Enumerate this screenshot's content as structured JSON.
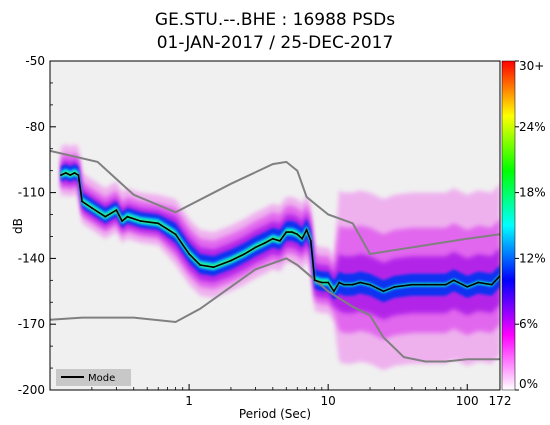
{
  "chart_data": {
    "type": "heatmap",
    "title_line1": "GE.STU.--.BHE : 16988 PSDs",
    "title_line2": "01-JAN-2017 / 25-DEC-2017",
    "xlabel": "Period (Sec)",
    "ylabel": "dB",
    "x_scale": "log",
    "xlim": [
      0.1,
      172
    ],
    "ylim": [
      -200,
      -50
    ],
    "x_ticks": [
      {
        "value": 1,
        "label": "1"
      },
      {
        "value": 10,
        "label": "10"
      },
      {
        "value": 100,
        "label": "100"
      },
      {
        "value": 172,
        "label": "172"
      }
    ],
    "y_ticks": [
      {
        "value": -50,
        "label": "-50"
      },
      {
        "value": -80,
        "label": "-80"
      },
      {
        "value": -110,
        "label": "-110"
      },
      {
        "value": -140,
        "label": "-140"
      },
      {
        "value": -170,
        "label": "-170"
      },
      {
        "value": -200,
        "label": "-200"
      }
    ],
    "colorbar": {
      "range": [
        0,
        30
      ],
      "ticks": [
        {
          "value": 30,
          "label": "30+"
        },
        {
          "value": 24,
          "label": "24%"
        },
        {
          "value": 18,
          "label": "18%"
        },
        {
          "value": 12,
          "label": "12%"
        },
        {
          "value": 6,
          "label": "6%"
        },
        {
          "value": 0,
          "label": "0%"
        }
      ],
      "colors": [
        "#ffffff",
        "#ff00ff",
        "#0000ff",
        "#00ffff",
        "#00ff00",
        "#ffff00",
        "#ff0000"
      ]
    },
    "legend": {
      "placement": "bottom-left",
      "entries": [
        {
          "label": "Mode",
          "color": "#000000"
        }
      ]
    },
    "mode": {
      "x": [
        0.12,
        0.13,
        0.14,
        0.15,
        0.16,
        0.17,
        0.2,
        0.25,
        0.3,
        0.33,
        0.36,
        0.45,
        0.6,
        0.8,
        1.0,
        1.2,
        1.5,
        2.0,
        2.5,
        3.0,
        3.5,
        4.0,
        4.5,
        5.0,
        5.5,
        6.0,
        6.5,
        7.0,
        7.5,
        8.0,
        9.0,
        10.0,
        11.0,
        12.0,
        13.0,
        15.0,
        17.0,
        20.0,
        25.0,
        30.0,
        40.0,
        50.0,
        60.0,
        70.0,
        80.0,
        100.0,
        120.0,
        150.0,
        172.0
      ],
      "y": [
        -102,
        -101,
        -102,
        -101,
        -102,
        -114,
        -117,
        -121,
        -118,
        -123,
        -121,
        -123,
        -124,
        -129,
        -138,
        -143,
        -144,
        -141,
        -138,
        -135,
        -133,
        -131,
        -132,
        -128,
        -128,
        -129,
        -131,
        -127,
        -132,
        -150,
        -151,
        -151,
        -155,
        -151,
        -152,
        -152,
        -151,
        -152,
        -155,
        -153,
        -152,
        -152,
        -152,
        -152,
        -150,
        -153,
        -151,
        -152,
        -148
      ]
    },
    "nlnm": {
      "x": [
        0.1,
        0.17,
        0.4,
        0.8,
        1.2,
        3.0,
        5.0,
        6.0,
        10.0,
        15.0,
        20.0,
        25.0,
        35.0,
        50.0,
        70.0,
        100.0,
        172.0
      ],
      "y": [
        -168,
        -167,
        -167,
        -169,
        -163,
        -145,
        -140,
        -143,
        -155,
        -162,
        -166,
        -176,
        -185,
        -187,
        -187,
        -186,
        -186
      ]
    },
    "nhnm": {
      "x": [
        0.1,
        0.22,
        0.4,
        0.8,
        2.0,
        4.0,
        5.0,
        6.0,
        7.0,
        10.0,
        15.0,
        20.0,
        50.0,
        100.0,
        172.0
      ],
      "y": [
        -91,
        -96,
        -111,
        -119,
        -106,
        -97,
        -96,
        -100,
        -112,
        -120,
        -124,
        -138,
        -134,
        -131,
        -129
      ]
    },
    "colorbar_note": "",
    "scatter_note": ""
  }
}
